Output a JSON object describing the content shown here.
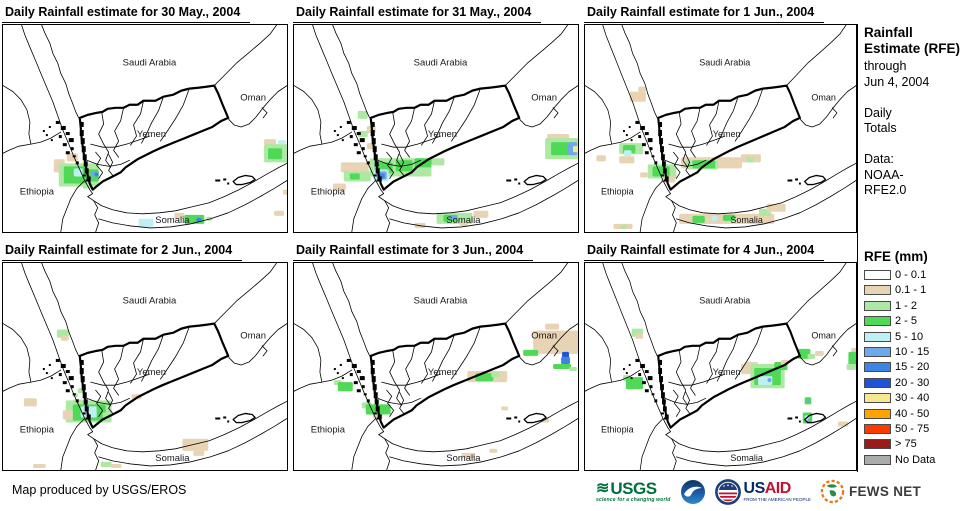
{
  "map_labels": {
    "saudi_arabia": "Saudi Arabia",
    "oman": "Oman",
    "yemen": "Yemen",
    "ethiopia": "Ethiopia",
    "somalia": "Somalia"
  },
  "panels": [
    {
      "title": "Daily Rainfall estimate for 30 May., 2004",
      "patches": [
        [
          51,
          133,
          11,
          13,
          "tan"
        ],
        [
          64,
          127,
          11,
          8,
          "tan"
        ],
        [
          56,
          137,
          40,
          23,
          "lg"
        ],
        [
          61,
          140,
          23,
          17,
          "g"
        ],
        [
          71,
          142,
          9,
          8,
          "cy"
        ],
        [
          82,
          143,
          14,
          12,
          "g"
        ],
        [
          88,
          145,
          6,
          5,
          "lb"
        ],
        [
          92,
          146,
          4,
          4,
          "b"
        ],
        [
          80,
          157,
          9,
          5,
          "lg"
        ],
        [
          262,
          113,
          12,
          6,
          "tan"
        ],
        [
          262,
          118,
          24,
          18,
          "lg"
        ],
        [
          266,
          122,
          14,
          11,
          "g"
        ],
        [
          276,
          114,
          8,
          4,
          "cy"
        ],
        [
          281,
          163,
          8,
          5,
          "tan"
        ],
        [
          136,
          192,
          15,
          8,
          "cy"
        ],
        [
          172,
          186,
          10,
          6,
          "tan"
        ],
        [
          182,
          188,
          20,
          9,
          "g"
        ],
        [
          194,
          191,
          5,
          4,
          "b"
        ],
        [
          204,
          190,
          6,
          4,
          "lg"
        ],
        [
          272,
          184,
          10,
          5,
          "tan"
        ]
      ]
    },
    {
      "title": "Daily Rainfall estimate for 31 May., 2004",
      "patches": [
        [
          64,
          85,
          10,
          8,
          "lg"
        ],
        [
          73,
          100,
          9,
          7,
          "tan"
        ],
        [
          64,
          105,
          10,
          6,
          "lg"
        ],
        [
          73,
          117,
          9,
          6,
          "tan"
        ],
        [
          47,
          136,
          28,
          10,
          "tan"
        ],
        [
          50,
          145,
          27,
          10,
          "lg"
        ],
        [
          56,
          147,
          10,
          6,
          "g"
        ],
        [
          39,
          157,
          13,
          7,
          "tan"
        ],
        [
          76,
          132,
          62,
          18,
          "lg"
        ],
        [
          138,
          132,
          13,
          7,
          "lg"
        ],
        [
          81,
          136,
          18,
          11,
          "g"
        ],
        [
          102,
          134,
          17,
          11,
          "g"
        ],
        [
          121,
          132,
          17,
          9,
          "g"
        ],
        [
          80,
          143,
          15,
          12,
          "cy"
        ],
        [
          83,
          145,
          10,
          8,
          "lb"
        ],
        [
          85,
          147,
          6,
          5,
          "b"
        ],
        [
          254,
          108,
          22,
          7,
          "tan"
        ],
        [
          252,
          112,
          34,
          21,
          "lg"
        ],
        [
          258,
          116,
          18,
          13,
          "g"
        ],
        [
          275,
          116,
          9,
          13,
          "lb"
        ],
        [
          285,
          115,
          4,
          12,
          "b"
        ],
        [
          280,
          120,
          6,
          6,
          "y"
        ],
        [
          143,
          186,
          36,
          11,
          "lg"
        ],
        [
          150,
          188,
          14,
          7,
          "g"
        ],
        [
          156,
          188,
          8,
          5,
          "lb"
        ],
        [
          180,
          184,
          15,
          7,
          "tan"
        ],
        [
          121,
          196,
          11,
          5,
          "tan"
        ],
        [
          166,
          195,
          8,
          4,
          "tan"
        ]
      ]
    },
    {
      "title": "Daily Rainfall estimate for 1 Jun., 2004",
      "patches": [
        [
          47,
          66,
          17,
          10,
          "tan"
        ],
        [
          56,
          61,
          8,
          5,
          "tan"
        ],
        [
          36,
          117,
          25,
          11,
          "lg"
        ],
        [
          40,
          119,
          13,
          8,
          "g"
        ],
        [
          41,
          124,
          8,
          6,
          "cy"
        ],
        [
          36,
          130,
          16,
          7,
          "tan"
        ],
        [
          12,
          129,
          10,
          6,
          "tan"
        ],
        [
          66,
          138,
          30,
          14,
          "lg"
        ],
        [
          71,
          140,
          18,
          10,
          "g"
        ],
        [
          58,
          146,
          8,
          5,
          "tan"
        ],
        [
          80,
          150,
          15,
          6,
          "tan"
        ],
        [
          101,
          131,
          64,
          11,
          "tan"
        ],
        [
          106,
          134,
          34,
          9,
          "lg"
        ],
        [
          113,
          134,
          24,
          8,
          "g"
        ],
        [
          164,
          128,
          21,
          8,
          "tan"
        ],
        [
          170,
          131,
          8,
          5,
          "lg"
        ],
        [
          99,
          187,
          100,
          10,
          "tan"
        ],
        [
          113,
          189,
          13,
          7,
          "g"
        ],
        [
          133,
          189,
          6,
          5,
          "cy"
        ],
        [
          145,
          188,
          13,
          6,
          "g"
        ],
        [
          183,
          182,
          13,
          7,
          "lg"
        ],
        [
          191,
          177,
          20,
          8,
          "tan"
        ],
        [
          30,
          197,
          20,
          5,
          "tan"
        ],
        [
          38,
          198,
          6,
          4,
          "lg"
        ]
      ]
    },
    {
      "title": "Daily Rainfall estimate for 2 Jun., 2004",
      "patches": [
        [
          54,
          66,
          12,
          8,
          "lg"
        ],
        [
          58,
          72,
          8,
          5,
          "tan"
        ],
        [
          75,
          124,
          8,
          5,
          "lg"
        ],
        [
          70,
          129,
          5,
          4,
          "lg"
        ],
        [
          21,
          134,
          13,
          8,
          "tan"
        ],
        [
          70,
          135,
          10,
          7,
          "tan"
        ],
        [
          63,
          136,
          46,
          22,
          "lg"
        ],
        [
          70,
          140,
          33,
          16,
          "g"
        ],
        [
          78,
          142,
          16,
          11,
          "cy"
        ],
        [
          60,
          146,
          10,
          9,
          "tan"
        ],
        [
          100,
          148,
          9,
          6,
          "lg"
        ],
        [
          129,
          130,
          10,
          5,
          "tan"
        ],
        [
          180,
          174,
          26,
          12,
          "tan"
        ],
        [
          191,
          186,
          11,
          5,
          "tan"
        ],
        [
          98,
          197,
          11,
          5,
          "lg"
        ],
        [
          108,
          199,
          11,
          4,
          "tan"
        ],
        [
          30,
          199,
          13,
          4,
          "tan"
        ]
      ]
    },
    {
      "title": "Daily Rainfall estimate for 3 Jun., 2004",
      "patches": [
        [
          40,
          116,
          8,
          5,
          "lg"
        ],
        [
          44,
          118,
          15,
          9,
          "g"
        ],
        [
          68,
          138,
          10,
          6,
          "lg"
        ],
        [
          72,
          140,
          25,
          10,
          "g"
        ],
        [
          79,
          150,
          10,
          4,
          "tan"
        ],
        [
          174,
          107,
          40,
          11,
          "tan"
        ],
        [
          182,
          109,
          18,
          8,
          "g"
        ],
        [
          198,
          108,
          8,
          5,
          "lg"
        ],
        [
          240,
          67,
          47,
          23,
          "tan"
        ],
        [
          252,
          60,
          14,
          6,
          "tan"
        ],
        [
          230,
          86,
          15,
          6,
          "g"
        ],
        [
          269,
          88,
          7,
          6,
          "db"
        ],
        [
          268,
          93,
          9,
          7,
          "b"
        ],
        [
          260,
          100,
          18,
          5,
          "g"
        ],
        [
          276,
          103,
          8,
          4,
          "lg"
        ],
        [
          208,
          142,
          7,
          4,
          "tan"
        ],
        [
          168,
          188,
          14,
          5,
          "tan"
        ],
        [
          196,
          184,
          8,
          4,
          "tan"
        ],
        [
          248,
          154,
          8,
          4,
          "tan"
        ]
      ]
    },
    {
      "title": "Daily Rainfall estimate for 4 Jun., 2004",
      "patches": [
        [
          49,
          65,
          12,
          8,
          "lg"
        ],
        [
          53,
          70,
          8,
          5,
          "tan"
        ],
        [
          40,
          111,
          8,
          6,
          "lg"
        ],
        [
          43,
          113,
          18,
          12,
          "g"
        ],
        [
          164,
          100,
          17,
          10,
          "tan"
        ],
        [
          168,
          98,
          14,
          6,
          "tan"
        ],
        [
          174,
          100,
          36,
          24,
          "lg"
        ],
        [
          178,
          104,
          28,
          17,
          "g"
        ],
        [
          182,
          112,
          15,
          9,
          "cy"
        ],
        [
          192,
          114,
          4,
          4,
          "lb"
        ],
        [
          199,
          98,
          14,
          8,
          "g"
        ],
        [
          206,
          96,
          8,
          5,
          "tan"
        ],
        [
          224,
          85,
          13,
          10,
          "g"
        ],
        [
          234,
          90,
          8,
          5,
          "lg"
        ],
        [
          242,
          87,
          9,
          5,
          "tan"
        ],
        [
          280,
          84,
          8,
          5,
          "tan"
        ],
        [
          277,
          88,
          11,
          15,
          "g"
        ],
        [
          275,
          100,
          10,
          6,
          "lg"
        ],
        [
          231,
          133,
          7,
          7,
          "g"
        ],
        [
          233,
          135,
          3,
          3,
          "lb"
        ],
        [
          229,
          148,
          10,
          11,
          "g"
        ],
        [
          231,
          151,
          5,
          5,
          "cy"
        ],
        [
          234,
          154,
          3,
          3,
          "lb"
        ],
        [
          266,
          157,
          11,
          5,
          "tan"
        ]
      ]
    }
  ],
  "sidebar": {
    "heading": "Rainfall Estimate (RFE)",
    "through": "through",
    "date": "Jun 4, 2004",
    "period_1": "Daily",
    "period_2": "Totals",
    "data_label": "Data:",
    "data_source_1": "NOAA-",
    "data_source_2": "RFE2.0"
  },
  "legend": {
    "title": "RFE (mm)",
    "items": [
      {
        "label": "0 - 0.1",
        "color": "#FFFFFF"
      },
      {
        "label": "0.1 - 1",
        "color": "#E8D4B5"
      },
      {
        "label": "1 - 2",
        "color": "#AEE9A3"
      },
      {
        "label": "2 - 5",
        "color": "#50D957"
      },
      {
        "label": "5 - 10",
        "color": "#BEEFF2"
      },
      {
        "label": "10 - 15",
        "color": "#6FA9E9"
      },
      {
        "label": "15 - 20",
        "color": "#3C85E3"
      },
      {
        "label": "20 - 30",
        "color": "#2053D6"
      },
      {
        "label": "30 - 40",
        "color": "#F6E793"
      },
      {
        "label": "40 - 50",
        "color": "#FFA303"
      },
      {
        "label": "50 - 75",
        "color": "#F93B00"
      },
      {
        "label": "> 75",
        "color": "#9B1B1B"
      },
      {
        "label": "No Data",
        "color": "#ABABAB"
      }
    ]
  },
  "patch_colors": {
    "tan": "#E8D4B5",
    "lg": "#AEE9A3",
    "g": "#50D957",
    "cy": "#BEEFF2",
    "lb": "#6FA9E9",
    "b": "#3C85E3",
    "db": "#2053D6",
    "y": "#F6E793",
    "o": "#FFA303",
    "r": "#F93B00",
    "dr": "#9B1B1B",
    "nd": "#ABABAB"
  },
  "footer": {
    "credit": "Map produced by USGS/EROS",
    "logos": {
      "usgs_text": "USGS",
      "usgs_tagline": "science for a changing world",
      "usaid_us": "US",
      "usaid_aid": "AID",
      "usaid_tagline": "FROM THE AMERICAN PEOPLE",
      "fewsnet_text": "FEWS NET"
    }
  }
}
